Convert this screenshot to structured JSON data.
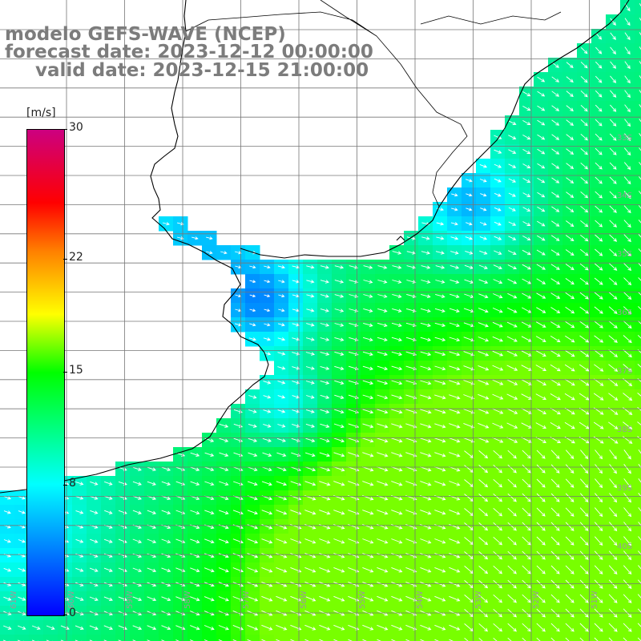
{
  "title": {
    "line1": "modelo GEFS-WAVE (NCEP)",
    "line2": "forecast date: 2023-12-12 00:00:00",
    "line3": "valid date: 2023-12-15 21:00:00"
  },
  "colorbar": {
    "unit": "[m/s]",
    "ticks": [
      {
        "label": "30",
        "value": 30
      },
      {
        "label": "22",
        "value": 22
      },
      {
        "label": "15",
        "value": 15
      },
      {
        "label": "8",
        "value": 8
      },
      {
        "label": "0",
        "value": 0
      }
    ],
    "min": 0,
    "max": 30
  },
  "grid": {
    "lat_labels": [
      "33S",
      "34S",
      "35S",
      "36S",
      "37S",
      "38S",
      "39S",
      "40S"
    ],
    "lon_labels": [
      "61W",
      "60W",
      "59W",
      "58W",
      "57W",
      "56W",
      "55W",
      "54W",
      "53W",
      "52W",
      "51W"
    ]
  },
  "colors": {
    "title": "#7c7c7c",
    "land": "#ffffff",
    "grid_line": "#777777",
    "arrow": "#ffffff",
    "coast": "#000000"
  }
}
